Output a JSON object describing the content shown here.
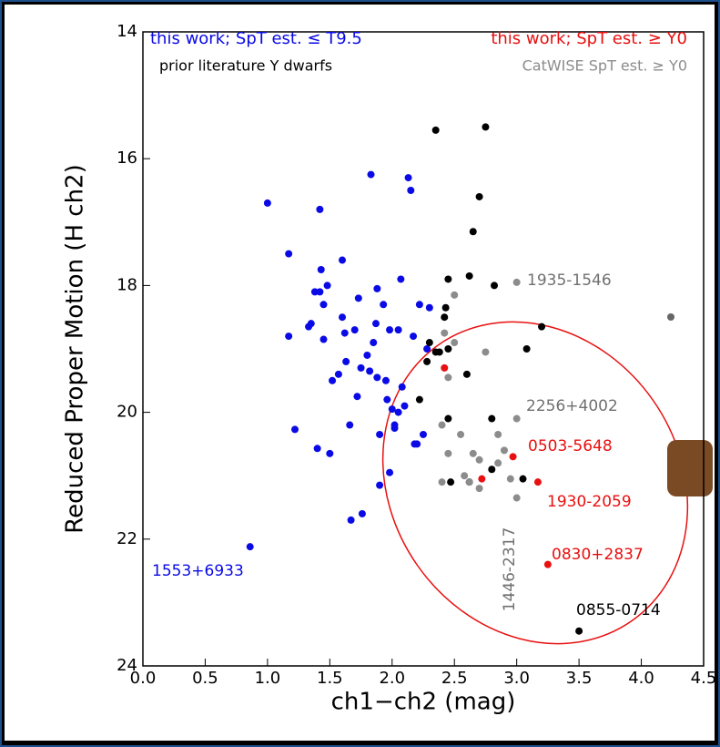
{
  "chart_data": {
    "type": "scatter",
    "xlabel": "ch1−ch2 (mag)",
    "ylabel": "Reduced Proper Motion (H ch2)",
    "xlim": [
      0,
      4.5
    ],
    "ylim": [
      24,
      14
    ],
    "y_inverted": true,
    "xticks": [
      {
        "value": 0,
        "label": "0.0"
      },
      {
        "value": 0.5,
        "label": "0.5"
      },
      {
        "value": 1,
        "label": "1.0"
      },
      {
        "value": 1.5,
        "label": "1.5"
      },
      {
        "value": 2,
        "label": "2.0"
      },
      {
        "value": 2.5,
        "label": "2.5"
      },
      {
        "value": 3,
        "label": "3.0"
      },
      {
        "value": 3.5,
        "label": "3.5"
      },
      {
        "value": 4,
        "label": "4.0"
      },
      {
        "value": 4.5,
        "label": "4.5"
      }
    ],
    "yticks": [
      14,
      16,
      18,
      20,
      22,
      24
    ],
    "series": [
      {
        "name": "this work; SpT est. ≤ T9.5",
        "color": "#0a0ae6",
        "x": [
          0.86,
          1.0,
          1.17,
          1.17,
          1.22,
          1.33,
          1.35,
          1.38,
          1.4,
          1.42,
          1.43,
          1.42,
          1.45,
          1.45,
          1.48,
          1.5,
          1.52,
          1.57,
          1.6,
          1.6,
          1.62,
          1.63,
          1.66,
          1.67,
          1.7,
          1.72,
          1.73,
          1.75,
          1.76,
          1.8,
          1.82,
          1.83,
          1.85,
          1.88,
          1.88,
          1.9,
          1.9,
          1.93,
          1.95,
          1.96,
          1.98,
          2.0,
          2.02,
          2.05,
          2.07,
          2.08,
          2.1,
          2.13,
          2.15,
          2.17,
          2.18,
          2.2,
          2.22,
          2.25,
          2.28,
          2.3,
          2.05,
          1.87,
          1.98,
          2.02
        ],
        "y": [
          22.12,
          16.7,
          17.5,
          18.8,
          20.27,
          18.65,
          18.6,
          18.1,
          20.57,
          16.8,
          17.75,
          18.1,
          18.3,
          18.85,
          18.0,
          20.65,
          19.5,
          19.4,
          17.6,
          18.5,
          18.75,
          19.2,
          20.2,
          21.7,
          18.7,
          19.75,
          18.2,
          19.3,
          21.6,
          19.1,
          19.35,
          16.25,
          18.9,
          19.45,
          18.05,
          21.15,
          20.35,
          18.3,
          19.5,
          19.8,
          20.95,
          19.95,
          20.2,
          18.7,
          17.9,
          19.6,
          19.9,
          16.3,
          16.5,
          18.8,
          20.5,
          20.5,
          18.3,
          20.35,
          19.0,
          18.35,
          20.0,
          18.6,
          18.7,
          20.25
        ]
      },
      {
        "name": "this work; SpT est. ≥ Y0",
        "color": "#e81010",
        "x": [
          2.42,
          2.97,
          2.72,
          3.17,
          3.25
        ],
        "y": [
          19.3,
          20.7,
          21.05,
          21.1,
          22.4
        ]
      },
      {
        "name": "prior literature Y dwarfs",
        "color": "#000000",
        "x": [
          2.35,
          2.75,
          2.7,
          2.65,
          2.45,
          2.62,
          2.82,
          3.2,
          2.43,
          2.3,
          2.28,
          2.35,
          2.45,
          2.6,
          3.08,
          2.22,
          2.45,
          2.8,
          3.05,
          2.8,
          2.47,
          2.62,
          3.5,
          2.42,
          2.38
        ],
        "y": [
          15.55,
          15.5,
          16.6,
          17.15,
          17.9,
          17.85,
          18.0,
          18.65,
          18.35,
          18.9,
          19.2,
          19.05,
          19.0,
          19.4,
          19.0,
          19.8,
          20.1,
          20.1,
          21.05,
          20.9,
          21.1,
          21.1,
          23.45,
          18.5,
          19.05
        ]
      },
      {
        "name": "CatWISE SpT est. ≥ Y0",
        "color": "#8c8c8c",
        "x": [
          3.0,
          2.5,
          2.42,
          2.5,
          2.75,
          2.45,
          3.0,
          2.4,
          2.55,
          2.85,
          2.45,
          2.65,
          2.9,
          2.7,
          2.58,
          2.62,
          2.4,
          2.95,
          2.7,
          3.0,
          2.85
        ],
        "y": [
          17.95,
          18.15,
          18.75,
          18.9,
          19.05,
          19.45,
          20.1,
          20.2,
          20.35,
          20.35,
          20.65,
          20.65,
          20.6,
          20.75,
          21.0,
          21.1,
          21.1,
          21.05,
          21.2,
          21.35,
          20.8
        ]
      }
    ],
    "annotations": [
      {
        "text": "1553+6933",
        "color": "#0a0ae6"
      },
      {
        "text": "1935-1546",
        "color": "#707070"
      },
      {
        "text": "2256+4002",
        "color": "#707070"
      },
      {
        "text": "0503-5648",
        "color": "#e81010"
      },
      {
        "text": "1930-2059",
        "color": "#e81010"
      },
      {
        "text": "0830+2837",
        "color": "#e81010"
      },
      {
        "text": "1446-2317",
        "color": "#707070"
      },
      {
        "text": "0855-0714",
        "color": "#000000"
      }
    ]
  }
}
